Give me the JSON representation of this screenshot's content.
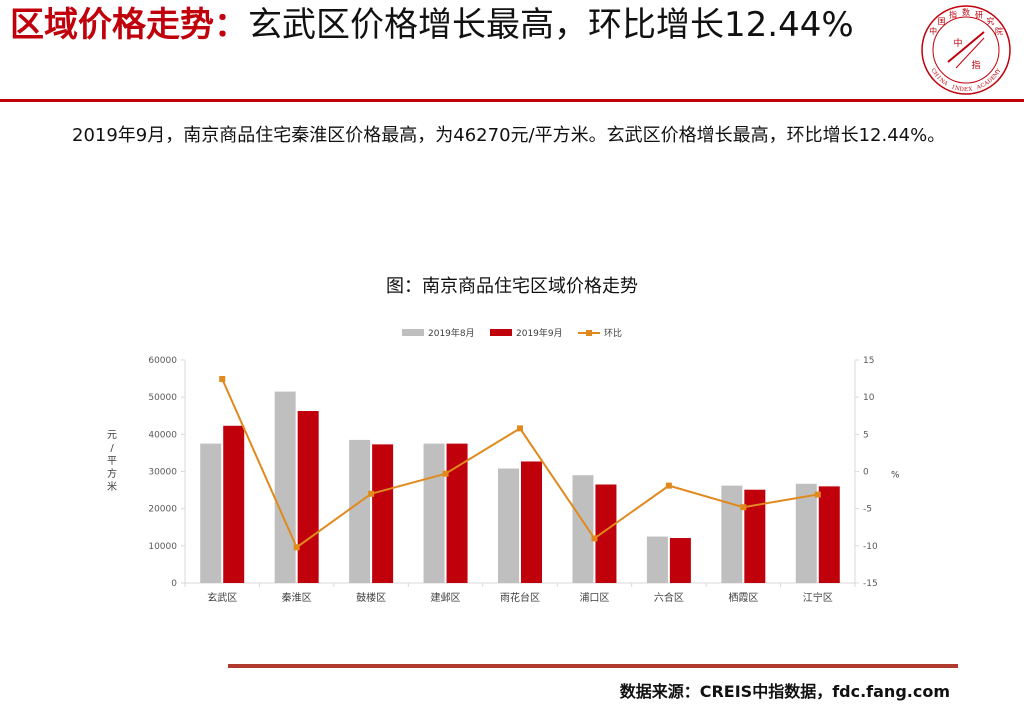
{
  "header": {
    "title_highlight": "区域价格走势：",
    "title_rest": "玄武区价格增长最高，环比增长12.44%"
  },
  "logo": {
    "chars": [
      "中",
      "国",
      "指",
      "数",
      "研",
      "究",
      "院"
    ],
    "center_chars": [
      "中",
      "指"
    ],
    "english": "CHINA INDEX ACADEMY",
    "color": "#c0000b"
  },
  "body": {
    "paragraph": "2019年9月，南京商品住宅秦淮区价格最高，为46270元/平方米。玄武区价格增长最高，环比增长12.44%。"
  },
  "chart_data": {
    "type": "bar",
    "title": "图：南京商品住宅区域价格走势",
    "categories": [
      "玄武区",
      "秦淮区",
      "鼓楼区",
      "建邺区",
      "雨花台区",
      "浦口区",
      "六合区",
      "栖霞区",
      "江宁区"
    ],
    "series": [
      {
        "name": "2019年8月",
        "type": "bar",
        "axis": "left",
        "color": "#bfbfbf",
        "values": [
          37500,
          51500,
          38500,
          37500,
          30800,
          29000,
          12500,
          26200,
          26700
        ]
      },
      {
        "name": "2019年9月",
        "type": "bar",
        "axis": "left",
        "color": "#c0000b",
        "values": [
          42300,
          46270,
          37300,
          37500,
          32700,
          26500,
          12100,
          25100,
          26000
        ]
      },
      {
        "name": "环比",
        "type": "line",
        "axis": "right",
        "color": "#e08a1e",
        "values": [
          12.44,
          -10.2,
          -3.0,
          -0.3,
          5.8,
          -9.0,
          -1.9,
          -4.8,
          -3.1
        ]
      }
    ],
    "ylabel": "元/平方米",
    "y2label": "%",
    "ylim": [
      0,
      60000
    ],
    "yticks": [
      0,
      10000,
      20000,
      30000,
      40000,
      50000,
      60000
    ],
    "y2lim": [
      -15,
      15
    ],
    "y2ticks": [
      -15,
      -10,
      -5,
      0,
      5,
      10,
      15
    ],
    "legend_position": "top",
    "grid": false
  },
  "footer": {
    "source": "数据来源：CREIS中指数据，fdc.fang.com"
  }
}
